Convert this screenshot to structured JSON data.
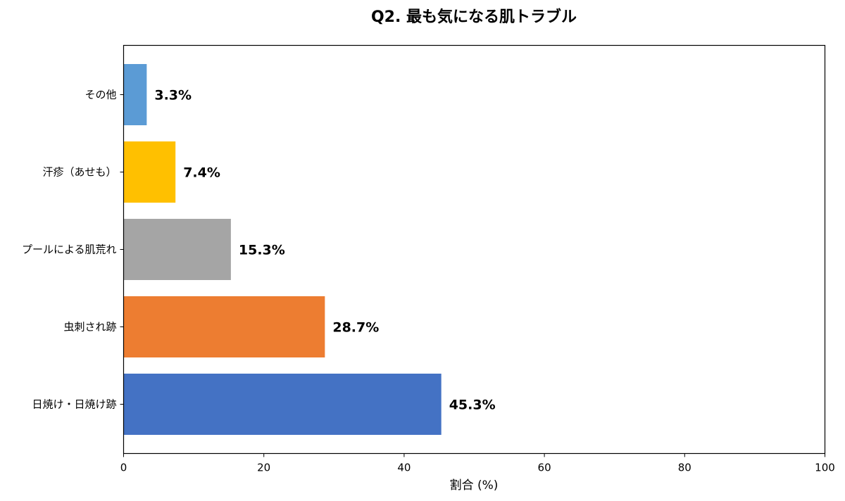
{
  "chart_data": {
    "type": "bar",
    "orientation": "horizontal",
    "title": "Q2. 最も気になる肌トラブル",
    "xlabel": "割合 (%)",
    "ylabel": "",
    "xlim": [
      0,
      100
    ],
    "xticks": [
      0,
      20,
      40,
      60,
      80,
      100
    ],
    "grid": false,
    "categories": [
      "日焼け・日焼け跡",
      "虫刺され跡",
      "プールによる肌荒れ",
      "汗疹（あせも）",
      "その他"
    ],
    "values": [
      45.3,
      28.7,
      15.3,
      7.4,
      3.3
    ],
    "value_labels": [
      "45.3%",
      "28.7%",
      "15.3%",
      "7.4%",
      "3.3%"
    ],
    "colors": [
      "#4472c4",
      "#ed7d31",
      "#a5a5a5",
      "#ffc000",
      "#5b9bd5"
    ]
  }
}
